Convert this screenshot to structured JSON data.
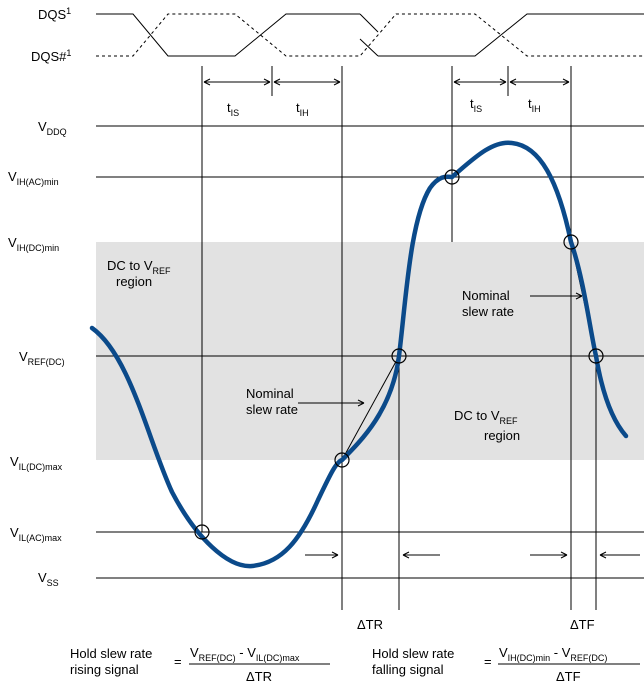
{
  "clock": {
    "dqs": "DQS",
    "dqs_sup": "1",
    "dqs_n": "DQS#",
    "dqs_n_sup": "1"
  },
  "timing": {
    "t_is_main": "t",
    "t_is_sub": "IS",
    "t_ih_main": "t",
    "t_ih_sub": "IH"
  },
  "levels": {
    "vddq": {
      "main": "V",
      "sub": "DDQ"
    },
    "vih_ac": {
      "main": "V",
      "sub": "IH(AC)min"
    },
    "vih_dc": {
      "main": "V",
      "sub": "IH(DC)min"
    },
    "vref": {
      "main": "V",
      "sub": "REF(DC)"
    },
    "vil_dc": {
      "main": "V",
      "sub": "IL(DC)max"
    },
    "vil_ac": {
      "main": "V",
      "sub": "IL(AC)max"
    },
    "vss": {
      "main": "V",
      "sub": "SS"
    }
  },
  "regions": {
    "upper_line1_a": "DC to V",
    "upper_line1_sub": "REF",
    "upper_line2": "region",
    "lower_line1_a": "DC to V",
    "lower_line1_sub": "REF",
    "lower_line2": "region"
  },
  "annotations": {
    "nominal_left_1": "Nominal",
    "nominal_left_2": "slew rate",
    "nominal_right_1": "Nominal",
    "nominal_right_2": "slew rate",
    "delta_tr": "ΔTR",
    "delta_tf": "ΔTF"
  },
  "formulas": {
    "rising": {
      "label1": "Hold slew rate",
      "label2": "rising signal",
      "eq": "=",
      "num_v1": "V",
      "num_s1": "REF(DC)",
      "num_mid": " - V",
      "num_s2": "IL(DC)max",
      "den": "ΔTR"
    },
    "falling": {
      "label1": "Hold slew rate",
      "label2": "falling signal",
      "eq": "=",
      "num_v1": "V",
      "num_s1": "IH(DC)min",
      "num_mid": " - V",
      "num_s2": "REF(DC)",
      "den": "ΔTF"
    }
  },
  "colors": {
    "signal": "#0b4a8a",
    "region": "#e2e2e2"
  }
}
